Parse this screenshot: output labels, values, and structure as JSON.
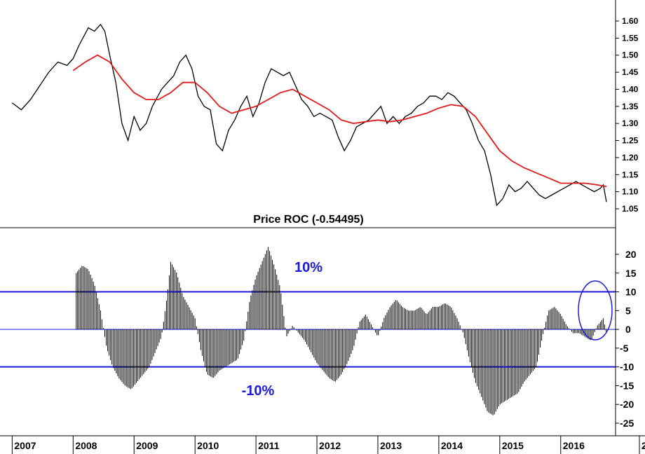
{
  "chart_data": [
    {
      "type": "line",
      "panel": "price",
      "ylim": [
        1.0,
        1.65
      ],
      "y_ticks": [
        "1.05",
        "1.10",
        "1.15",
        "1.20",
        "1.25",
        "1.30",
        "1.35",
        "1.40",
        "1.45",
        "1.50",
        "1.55",
        "1.60"
      ],
      "grid": false,
      "series": [
        {
          "role": "price",
          "color": "#000000",
          "x": [
            2007.0,
            2007.15,
            2007.3,
            2007.45,
            2007.6,
            2007.75,
            2007.9,
            2008.0,
            2008.1,
            2008.25,
            2008.35,
            2008.45,
            2008.52,
            2008.6,
            2008.7,
            2008.8,
            2008.9,
            2009.0,
            2009.1,
            2009.2,
            2009.3,
            2009.45,
            2009.55,
            2009.65,
            2009.75,
            2009.85,
            2009.95,
            2010.05,
            2010.15,
            2010.25,
            2010.35,
            2010.45,
            2010.55,
            2010.65,
            2010.75,
            2010.85,
            2010.95,
            2011.05,
            2011.15,
            2011.25,
            2011.35,
            2011.45,
            2011.55,
            2011.65,
            2011.75,
            2011.85,
            2011.95,
            2012.05,
            2012.15,
            2012.25,
            2012.35,
            2012.45,
            2012.55,
            2012.65,
            2012.75,
            2012.85,
            2012.95,
            2013.05,
            2013.15,
            2013.25,
            2013.35,
            2013.45,
            2013.55,
            2013.65,
            2013.75,
            2013.85,
            2013.95,
            2014.05,
            2014.15,
            2014.25,
            2014.35,
            2014.45,
            2014.55,
            2014.65,
            2014.75,
            2014.85,
            2014.95,
            2015.05,
            2015.15,
            2015.25,
            2015.35,
            2015.45,
            2015.55,
            2015.65,
            2015.75,
            2015.85,
            2015.95,
            2016.05,
            2016.15,
            2016.25,
            2016.35,
            2016.45,
            2016.55,
            2016.65,
            2016.7,
            2016.75
          ],
          "values": [
            1.36,
            1.34,
            1.37,
            1.41,
            1.45,
            1.48,
            1.47,
            1.49,
            1.53,
            1.58,
            1.57,
            1.59,
            1.57,
            1.5,
            1.42,
            1.3,
            1.25,
            1.32,
            1.28,
            1.3,
            1.35,
            1.4,
            1.42,
            1.44,
            1.48,
            1.5,
            1.46,
            1.38,
            1.35,
            1.34,
            1.24,
            1.22,
            1.28,
            1.31,
            1.35,
            1.38,
            1.32,
            1.36,
            1.42,
            1.46,
            1.45,
            1.44,
            1.45,
            1.41,
            1.37,
            1.35,
            1.32,
            1.33,
            1.32,
            1.31,
            1.26,
            1.22,
            1.25,
            1.29,
            1.3,
            1.31,
            1.33,
            1.35,
            1.3,
            1.32,
            1.3,
            1.32,
            1.33,
            1.35,
            1.36,
            1.38,
            1.38,
            1.37,
            1.39,
            1.38,
            1.36,
            1.34,
            1.3,
            1.25,
            1.22,
            1.15,
            1.06,
            1.08,
            1.12,
            1.1,
            1.11,
            1.13,
            1.11,
            1.09,
            1.08,
            1.09,
            1.1,
            1.11,
            1.12,
            1.13,
            1.12,
            1.11,
            1.1,
            1.11,
            1.12,
            1.07
          ]
        },
        {
          "role": "moving-average",
          "color": "#e01b1b",
          "x": [
            2008.0,
            2008.2,
            2008.4,
            2008.6,
            2008.8,
            2009.0,
            2009.2,
            2009.4,
            2009.6,
            2009.8,
            2010.0,
            2010.2,
            2010.4,
            2010.6,
            2010.8,
            2011.0,
            2011.2,
            2011.4,
            2011.6,
            2011.8,
            2012.0,
            2012.2,
            2012.4,
            2012.6,
            2012.8,
            2013.0,
            2013.2,
            2013.4,
            2013.6,
            2013.8,
            2014.0,
            2014.2,
            2014.4,
            2014.6,
            2014.8,
            2015.0,
            2015.2,
            2015.4,
            2015.6,
            2015.8,
            2016.0,
            2016.2,
            2016.4,
            2016.6,
            2016.75
          ],
          "values": [
            1.455,
            1.48,
            1.5,
            1.48,
            1.43,
            1.39,
            1.37,
            1.37,
            1.39,
            1.42,
            1.42,
            1.39,
            1.35,
            1.33,
            1.34,
            1.35,
            1.37,
            1.39,
            1.4,
            1.38,
            1.36,
            1.34,
            1.31,
            1.3,
            1.305,
            1.31,
            1.305,
            1.31,
            1.32,
            1.33,
            1.345,
            1.355,
            1.35,
            1.32,
            1.27,
            1.22,
            1.19,
            1.17,
            1.155,
            1.14,
            1.125,
            1.125,
            1.125,
            1.12,
            1.115
          ]
        }
      ]
    },
    {
      "type": "bar",
      "panel": "roc",
      "title": "Price ROC (-0.54495)",
      "ylim": [
        -29,
        25
      ],
      "y_ticks": [
        "20",
        "15",
        "10",
        "5",
        "0",
        "-5",
        "-10",
        "-15",
        "-20",
        "-25"
      ],
      "reference_lines": [
        {
          "value": 10,
          "label": "10%",
          "color": "#1a1adb"
        },
        {
          "value": -10,
          "label": "-10%",
          "color": "#1a1adb"
        },
        {
          "value": 0,
          "label": "",
          "color": "#1a1adb"
        }
      ],
      "series": [
        {
          "color": "#000000",
          "x": [
            2008.05,
            2008.15,
            2008.25,
            2008.35,
            2008.45,
            2008.55,
            2008.65,
            2008.75,
            2008.85,
            2008.95,
            2009.05,
            2009.15,
            2009.25,
            2009.35,
            2009.45,
            2009.55,
            2009.6,
            2009.7,
            2009.8,
            2009.9,
            2010.0,
            2010.1,
            2010.2,
            2010.3,
            2010.4,
            2010.5,
            2010.6,
            2010.7,
            2010.8,
            2010.9,
            2011.0,
            2011.1,
            2011.2,
            2011.3,
            2011.4,
            2011.5,
            2011.6,
            2011.7,
            2011.8,
            2011.9,
            2012.0,
            2012.1,
            2012.2,
            2012.3,
            2012.4,
            2012.5,
            2012.6,
            2012.7,
            2012.8,
            2012.9,
            2013.0,
            2013.1,
            2013.2,
            2013.3,
            2013.4,
            2013.5,
            2013.6,
            2013.7,
            2013.8,
            2013.9,
            2014.0,
            2014.1,
            2014.2,
            2014.3,
            2014.4,
            2014.5,
            2014.6,
            2014.7,
            2014.8,
            2014.9,
            2015.0,
            2015.1,
            2015.2,
            2015.3,
            2015.4,
            2015.5,
            2015.6,
            2015.7,
            2015.8,
            2015.9,
            2016.0,
            2016.1,
            2016.2,
            2016.3,
            2016.4,
            2016.5,
            2016.6,
            2016.7,
            2016.75
          ],
          "values": [
            15,
            17,
            16,
            12,
            5,
            -5,
            -10,
            -13,
            -15,
            -16,
            -14,
            -12,
            -10,
            -6,
            -2,
            10,
            18,
            15,
            9,
            6,
            3,
            -6,
            -12,
            -13,
            -11,
            -10,
            -9,
            -8,
            -3,
            8,
            14,
            18,
            22,
            17,
            11,
            -2,
            1,
            -1,
            -3,
            -6,
            -9,
            -11,
            -13,
            -14,
            -12,
            -9,
            -5,
            2,
            4,
            1,
            -2,
            3,
            6,
            8,
            6,
            5,
            5,
            6,
            4,
            6,
            6,
            7,
            6,
            3,
            -1,
            -8,
            -14,
            -18,
            -22,
            -23,
            -20,
            -19,
            -18,
            -17,
            -14,
            -12,
            -10,
            -2,
            5,
            6,
            4,
            1,
            -1,
            -1,
            -2,
            -3,
            1,
            3,
            -1
          ]
        }
      ]
    },
    {
      "type": "axis",
      "panel": "time",
      "x_ticks": [
        "2007",
        "2008",
        "2009",
        "2010",
        "2011",
        "2012",
        "2013",
        "2014",
        "2015",
        "2016",
        "2"
      ]
    }
  ]
}
